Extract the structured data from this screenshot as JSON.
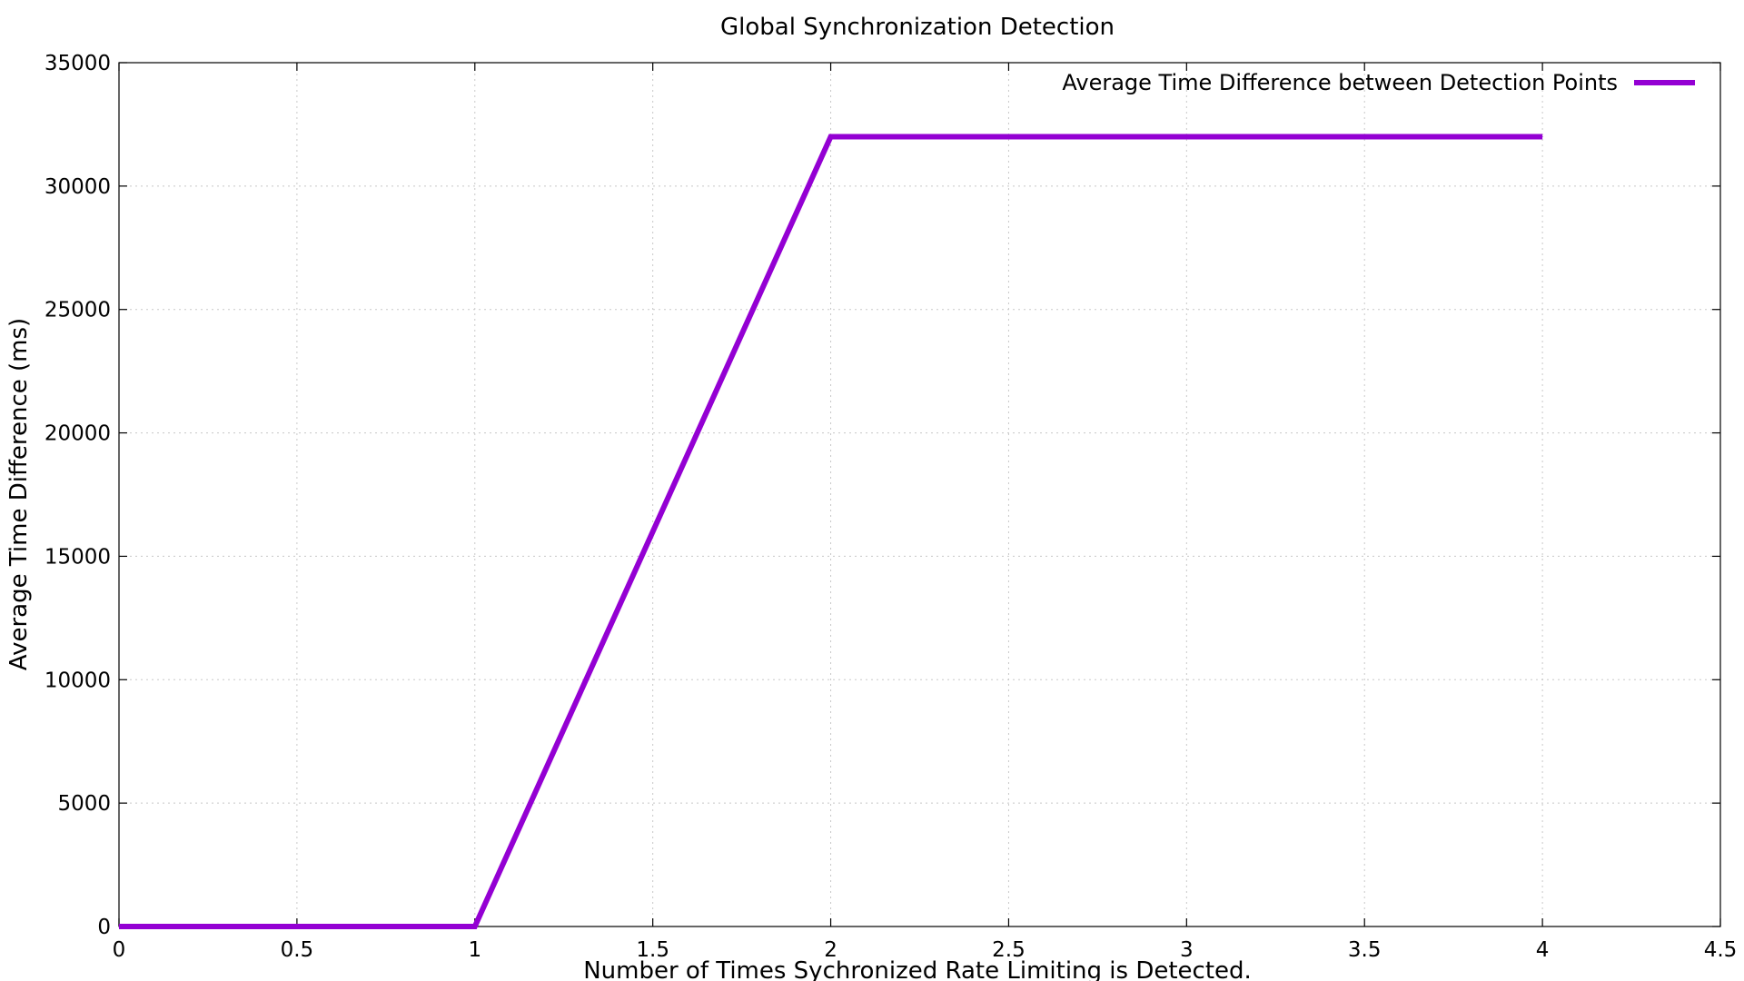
{
  "chart_data": {
    "type": "line",
    "title": "Global Synchronization Detection",
    "xlabel": "Number of Times Sychronized Rate Limiting is Detected.",
    "ylabel": "Average Time Difference (ms)",
    "xlim": [
      0,
      4.5
    ],
    "ylim": [
      0,
      35000
    ],
    "x_ticks": [
      0,
      0.5,
      1,
      1.5,
      2,
      2.5,
      3,
      3.5,
      4,
      4.5
    ],
    "x_tick_labels": [
      "0",
      "0.5",
      "1",
      "1.5",
      "2",
      "2.5",
      "3",
      "3.5",
      "4",
      "4.5"
    ],
    "y_ticks": [
      0,
      5000,
      10000,
      15000,
      20000,
      25000,
      30000,
      35000
    ],
    "y_tick_labels": [
      "0",
      "5000",
      "10000",
      "15000",
      "20000",
      "25000",
      "30000",
      "35000"
    ],
    "grid": true,
    "legend_position": "top-right",
    "series": [
      {
        "name": "Average Time Difference between Detection Points",
        "color": "#9400d3",
        "x": [
          0,
          1,
          2,
          3,
          4
        ],
        "values": [
          0,
          0,
          32000,
          32000,
          32000
        ]
      }
    ]
  }
}
